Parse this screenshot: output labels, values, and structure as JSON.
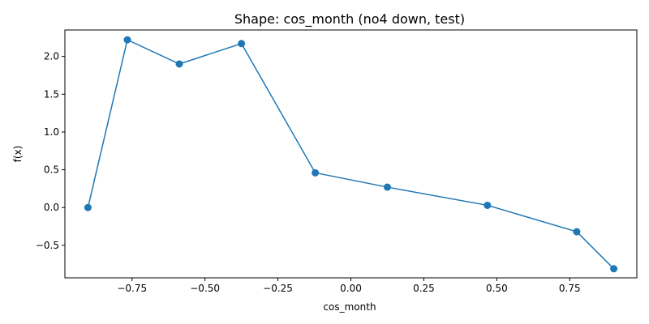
{
  "chart_data": {
    "type": "line",
    "title": "Shape: cos_month (no4 down, test)",
    "xlabel": "cos_month",
    "ylabel": "f(x)",
    "xlim": [
      -0.98,
      0.98
    ],
    "ylim": [
      -0.93,
      2.35
    ],
    "xticks": [
      -0.75,
      -0.5,
      -0.25,
      0.0,
      0.25,
      0.5,
      0.75
    ],
    "xtick_labels": [
      "−0.75",
      "−0.50",
      "−0.25",
      "0.00",
      "0.25",
      "0.50",
      "0.75"
    ],
    "yticks": [
      -0.5,
      0.0,
      0.5,
      1.0,
      1.5,
      2.0
    ],
    "ytick_labels": [
      "−0.5",
      "0.0",
      "0.5",
      "1.0",
      "1.5",
      "2.0"
    ],
    "grid": false,
    "markers": true,
    "color": "#1f77b4",
    "series": [
      {
        "x": [
          -0.901,
          -0.766,
          -0.588,
          -0.375,
          -0.122,
          0.125,
          0.468,
          0.774,
          0.901
        ],
        "y": [
          0.0,
          2.22,
          1.9,
          2.17,
          0.46,
          0.27,
          0.03,
          -0.32,
          -0.81
        ]
      }
    ]
  }
}
